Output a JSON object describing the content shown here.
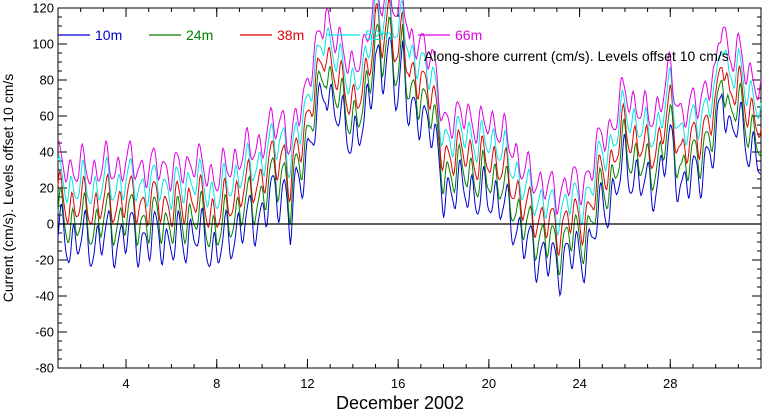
{
  "chart_data": {
    "type": "line",
    "xlabel": "December 2002",
    "ylabel": "Current (cm/s). Levels offset 10 cm/s",
    "annotation": "Along-shore current (cm/s). Levels offset 10 cm/s",
    "xlim": [
      1,
      32
    ],
    "ylim": [
      -80,
      120
    ],
    "x_ticks": [
      4,
      8,
      12,
      16,
      20,
      24,
      28
    ],
    "y_ticks": [
      -80,
      -60,
      -40,
      -20,
      0,
      20,
      40,
      60,
      80,
      100,
      120
    ],
    "zero_line": true,
    "legend_position": "top-left",
    "series": [
      {
        "name": "10m",
        "color": "#0000d0",
        "offset": 0
      },
      {
        "name": "24m",
        "color": "#008000",
        "offset": 10
      },
      {
        "name": "38m",
        "color": "#e00000",
        "offset": 20
      },
      {
        "name": "52m",
        "color": "#00e6e6",
        "offset": 30
      },
      {
        "name": "66m",
        "color": "#e000e0",
        "offset": 40
      }
    ],
    "base_profile": {
      "x": [
        1,
        1.5,
        2,
        2.5,
        3,
        3.5,
        4,
        4.5,
        5,
        5.5,
        6,
        6.5,
        7,
        7.5,
        8,
        8.5,
        9,
        9.5,
        10,
        10.5,
        11,
        11.25,
        11.5,
        12,
        12.5,
        12.8,
        13,
        13.5,
        14,
        14.5,
        14.8,
        15,
        15.3,
        15.6,
        16,
        16.2,
        16.5,
        17,
        17.5,
        18,
        18.5,
        19,
        19.5,
        20,
        20.5,
        21,
        21.5,
        22,
        22.5,
        23,
        23.5,
        24,
        24.5,
        25,
        25.5,
        26,
        26.5,
        27,
        27.5,
        28,
        28.5,
        29,
        29.5,
        30,
        30.3,
        30.6,
        31,
        31.5,
        32
      ],
      "y": [
        -5,
        -10,
        -8,
        -12,
        -6,
        -10,
        -5,
        -8,
        -10,
        -6,
        -12,
        -8,
        -5,
        -10,
        -15,
        -8,
        -2,
        2,
        5,
        15,
        20,
        -2,
        18,
        40,
        60,
        80,
        70,
        55,
        50,
        52,
        75,
        100,
        80,
        92,
        75,
        95,
        55,
        65,
        50,
        20,
        15,
        25,
        10,
        20,
        10,
        5,
        -10,
        -15,
        -18,
        -25,
        -15,
        -20,
        -10,
        10,
        15,
        35,
        25,
        20,
        25,
        45,
        20,
        25,
        35,
        40,
        80,
        50,
        55,
        45,
        30
      ]
    }
  }
}
